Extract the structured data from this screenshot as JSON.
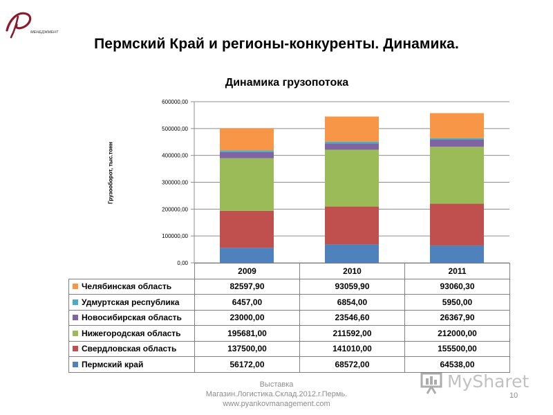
{
  "slide": {
    "title": "Пермский Край и регионы-конкуренты. Динамика.",
    "footer_lines": [
      "Выставка",
      "Магазин.Логистика.Склад.2012.г.Пермь.",
      "www.pyankovmanagement.com"
    ],
    "page_number": "10",
    "logo_text": "МЕНЕДЖМЕНТ",
    "logo_icon": "stylized-letter-p-logo",
    "watermark_text": "MySharet",
    "watermark_icon": "presentation-screen-icon"
  },
  "chart_data": {
    "type": "bar",
    "stacked": true,
    "title": "Динамика грузопотока",
    "ylabel": "Грузооборот, тыс.тонн",
    "xlabel": "",
    "ylim": [
      0,
      600000
    ],
    "yticks": [
      "0,00",
      "100000,00",
      "200000,00",
      "300000,00",
      "400000,00",
      "500000,00",
      "600000,00"
    ],
    "grid": true,
    "legend": "data-table",
    "categories": [
      "2009",
      "2010",
      "2011"
    ],
    "series": [
      {
        "name": "Пермский край",
        "color": "#4f81bd",
        "values": [
          56172.0,
          68572.0,
          64538.0
        ],
        "labels": [
          "56172,00",
          "68572,00",
          "64538,00"
        ]
      },
      {
        "name": "Свердловская область",
        "color": "#c0504d",
        "values": [
          137500.0,
          141010.0,
          155500.0
        ],
        "labels": [
          "137500,00",
          "141010,00",
          "155500,00"
        ]
      },
      {
        "name": "Нижегородская область",
        "color": "#9bbb59",
        "values": [
          195681.0,
          211592.0,
          212000.0
        ],
        "labels": [
          "195681,00",
          "211592,00",
          "212000,00"
        ]
      },
      {
        "name": "Новосибирская область",
        "color": "#8064a2",
        "values": [
          23000.0,
          23546.6,
          26367.9
        ],
        "labels": [
          "23000,00",
          "23546,60",
          "26367,90"
        ]
      },
      {
        "name": "Удмуртская республика",
        "color": "#4bacc6",
        "values": [
          6457.0,
          6854.0,
          5950.0
        ],
        "labels": [
          "6457,00",
          "6854,00",
          "5950,00"
        ]
      },
      {
        "name": "Челябинская область",
        "color": "#f79646",
        "values": [
          82597.9,
          93059.9,
          93060.3
        ],
        "labels": [
          "82597,90",
          "93059,90",
          "93060,30"
        ]
      }
    ]
  }
}
